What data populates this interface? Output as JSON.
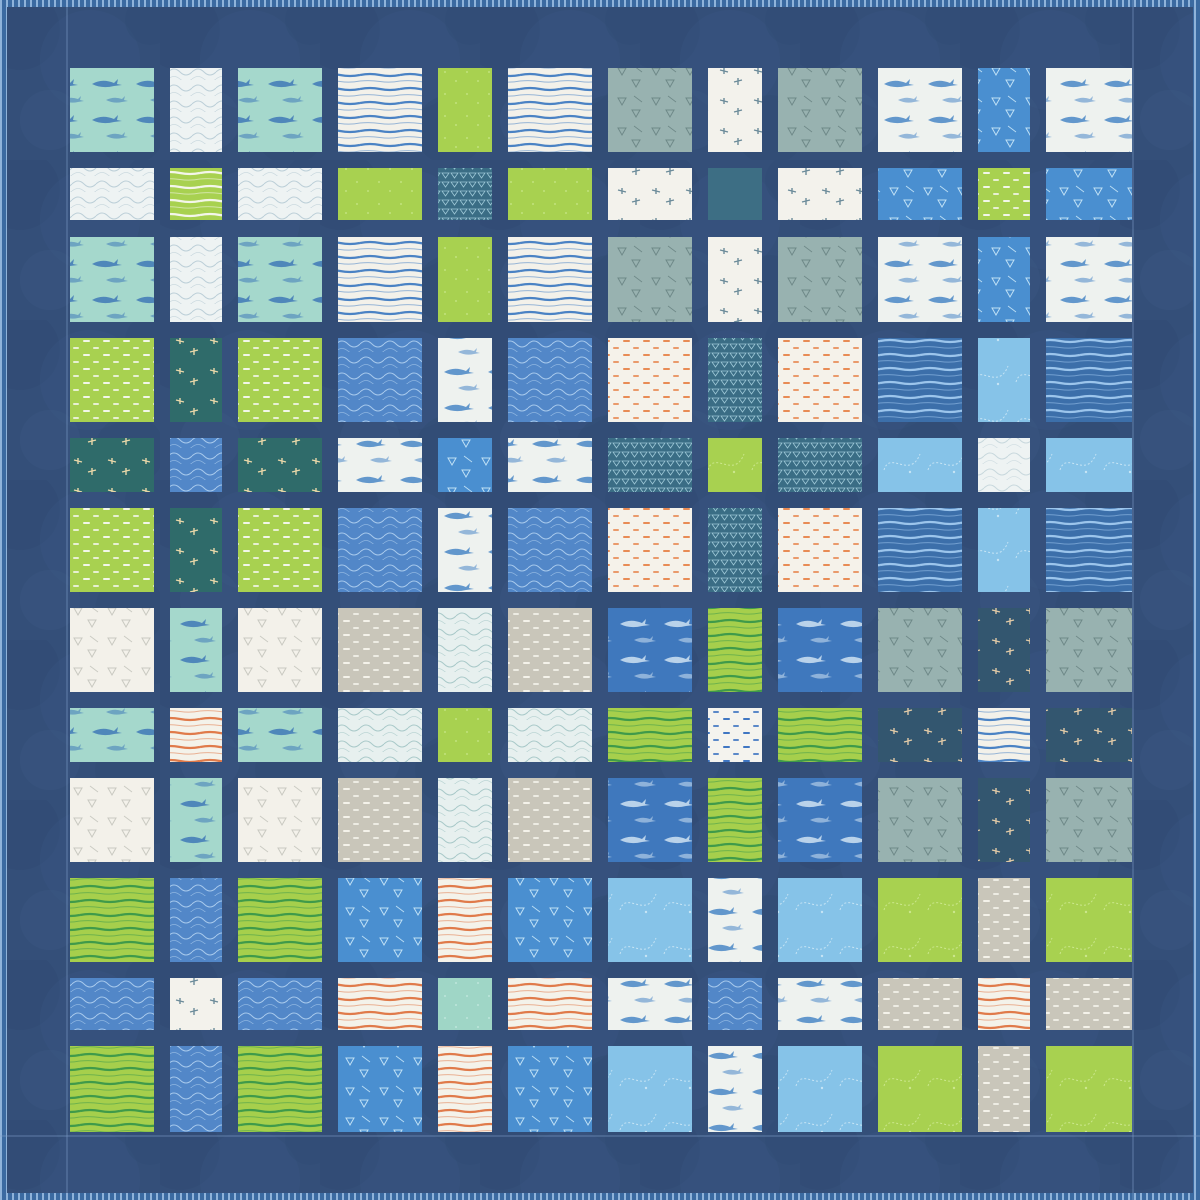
{
  "quilt": {
    "colors": {
      "sashing": "#344f79",
      "binding": "#3b6aa1",
      "binding_stripe": "#8fb3da",
      "stitch_line": "#7f9fca"
    },
    "fabrics": {
      "mint_sharks": {
        "base": "#a5d8cc",
        "motif": "sharks",
        "ink": "#3f79b8"
      },
      "white_waves": {
        "base": "#eef3f3",
        "motif": "waves",
        "ink": "#bccfd8"
      },
      "white_stripe": {
        "base": "#f3f1ea",
        "motif": "hstripes",
        "ink": "#4a82c4"
      },
      "lime": {
        "base": "#a8d150",
        "motif": "speckle",
        "ink": "#c9e88a"
      },
      "navy_triangles": {
        "base": "#3a6d85",
        "motif": "triangles",
        "ink": "#9cc7d6"
      },
      "lime_stripe": {
        "base": "#a8d150",
        "motif": "hstripes",
        "ink": "#f4f6ea"
      },
      "sage_teeth": {
        "base": "#98b2b0",
        "motif": "teeth",
        "ink": "#6e8988"
      },
      "white_divers": {
        "base": "#f3f2ec",
        "motif": "divers",
        "ink": "#6c8c9a"
      },
      "teal_solid": {
        "base": "#3d6e84",
        "motif": "solid",
        "ink": "#3d6e84"
      },
      "white_sharks": {
        "base": "#eef2ef",
        "motif": "sharks",
        "ink": "#4a87c6"
      },
      "blue_teeth": {
        "base": "#4a8fd0",
        "motif": "teeth",
        "ink": "#bfe0f5"
      },
      "lime_dash": {
        "base": "#a8d150",
        "motif": "dashes",
        "ink": "#f2f6e8"
      },
      "teal_divers": {
        "base": "#2f6b6a",
        "motif": "divers",
        "ink": "#e8d7a8"
      },
      "blue_waves": {
        "base": "#5287c8",
        "motif": "waves",
        "ink": "#a7c9ec"
      },
      "white_dash_orange": {
        "base": "#f5f2ea",
        "motif": "dashes",
        "ink": "#e88b55"
      },
      "navy_stripe": {
        "base": "#3c6faa",
        "motif": "hstripes",
        "ink": "#9cc5ec"
      },
      "sky_swirl": {
        "base": "#86c3e8",
        "motif": "swirl",
        "ink": "#c6e4f5"
      },
      "white_swirl": {
        "base": "#eef3f3",
        "motif": "waves",
        "ink": "#c8d8dd"
      },
      "white_rays": {
        "base": "#f3f1ea",
        "motif": "teeth",
        "ink": "#c9c9c1"
      },
      "taupe_dash": {
        "base": "#c9c6ba",
        "motif": "dashes",
        "ink": "#f4f2ea"
      },
      "white_kelp": {
        "base": "#e7f0ef",
        "motif": "waves",
        "ink": "#a9c9c9"
      },
      "blue_sharks": {
        "base": "#3f78bd",
        "motif": "sharks",
        "ink": "#cfe2f2"
      },
      "green_stripe": {
        "base": "#a6cf4c",
        "motif": "hstripes",
        "ink": "#3f9a4a"
      },
      "white_stripe_orange": {
        "base": "#f4f2ea",
        "motif": "hstripes",
        "ink": "#e07a4a"
      },
      "mint_solid": {
        "base": "#9fd6c6",
        "motif": "speckle",
        "ink": "#c7ece2"
      },
      "white_fish_blue": {
        "base": "#f4f3ee",
        "motif": "dashes",
        "ink": "#3f76c2"
      },
      "navy_divers": {
        "base": "#33566f",
        "motif": "divers",
        "ink": "#e0c9a6"
      },
      "lime_swirl": {
        "base": "#a8d150",
        "motif": "swirl",
        "ink": "#cbe78c"
      }
    },
    "rows": [
      [
        "mint_sharks",
        "white_waves",
        "mint_sharks",
        "white_stripe",
        "lime",
        "white_stripe",
        "sage_teeth",
        "white_divers",
        "sage_teeth",
        "white_sharks",
        "blue_teeth",
        "white_sharks"
      ],
      [
        "white_waves",
        "lime_stripe",
        "white_waves",
        "lime",
        "navy_triangles",
        "lime",
        "white_divers",
        "teal_solid",
        "white_divers",
        "blue_teeth",
        "lime_dash",
        "blue_teeth"
      ],
      [
        "mint_sharks",
        "white_waves",
        "mint_sharks",
        "white_stripe",
        "lime",
        "white_stripe",
        "sage_teeth",
        "white_divers",
        "sage_teeth",
        "white_sharks",
        "blue_teeth",
        "white_sharks"
      ],
      [
        "lime_dash",
        "teal_divers",
        "lime_dash",
        "blue_waves",
        "white_sharks",
        "blue_waves",
        "white_dash_orange",
        "navy_triangles",
        "white_dash_orange",
        "navy_stripe",
        "sky_swirl",
        "navy_stripe"
      ],
      [
        "teal_divers",
        "blue_waves",
        "teal_divers",
        "white_sharks",
        "blue_teeth",
        "white_sharks",
        "navy_triangles",
        "lime_swirl",
        "navy_triangles",
        "sky_swirl",
        "white_swirl",
        "sky_swirl"
      ],
      [
        "lime_dash",
        "teal_divers",
        "lime_dash",
        "blue_waves",
        "white_sharks",
        "blue_waves",
        "white_dash_orange",
        "navy_triangles",
        "white_dash_orange",
        "navy_stripe",
        "sky_swirl",
        "navy_stripe"
      ],
      [
        "white_rays",
        "mint_sharks",
        "white_rays",
        "taupe_dash",
        "white_kelp",
        "taupe_dash",
        "blue_sharks",
        "green_stripe",
        "blue_sharks",
        "sage_teeth",
        "navy_divers",
        "sage_teeth"
      ],
      [
        "mint_sharks",
        "white_stripe_orange",
        "mint_sharks",
        "white_kelp",
        "lime",
        "white_kelp",
        "green_stripe",
        "white_fish_blue",
        "green_stripe",
        "navy_divers",
        "white_stripe",
        "navy_divers"
      ],
      [
        "white_rays",
        "mint_sharks",
        "white_rays",
        "taupe_dash",
        "white_kelp",
        "taupe_dash",
        "blue_sharks",
        "green_stripe",
        "blue_sharks",
        "sage_teeth",
        "navy_divers",
        "sage_teeth"
      ],
      [
        "green_stripe",
        "blue_waves",
        "green_stripe",
        "blue_teeth",
        "white_stripe_orange",
        "blue_teeth",
        "sky_swirl",
        "white_sharks",
        "sky_swirl",
        "lime_swirl",
        "taupe_dash",
        "lime_swirl"
      ],
      [
        "blue_waves",
        "white_divers",
        "blue_waves",
        "white_stripe_orange",
        "mint_solid",
        "white_stripe_orange",
        "white_sharks",
        "blue_waves",
        "white_sharks",
        "taupe_dash",
        "white_stripe_orange",
        "taupe_dash"
      ],
      [
        "green_stripe",
        "blue_waves",
        "green_stripe",
        "blue_teeth",
        "white_stripe_orange",
        "blue_teeth",
        "sky_swirl",
        "white_sharks",
        "sky_swirl",
        "lime_swirl",
        "taupe_dash",
        "lime_swirl"
      ]
    ]
  }
}
